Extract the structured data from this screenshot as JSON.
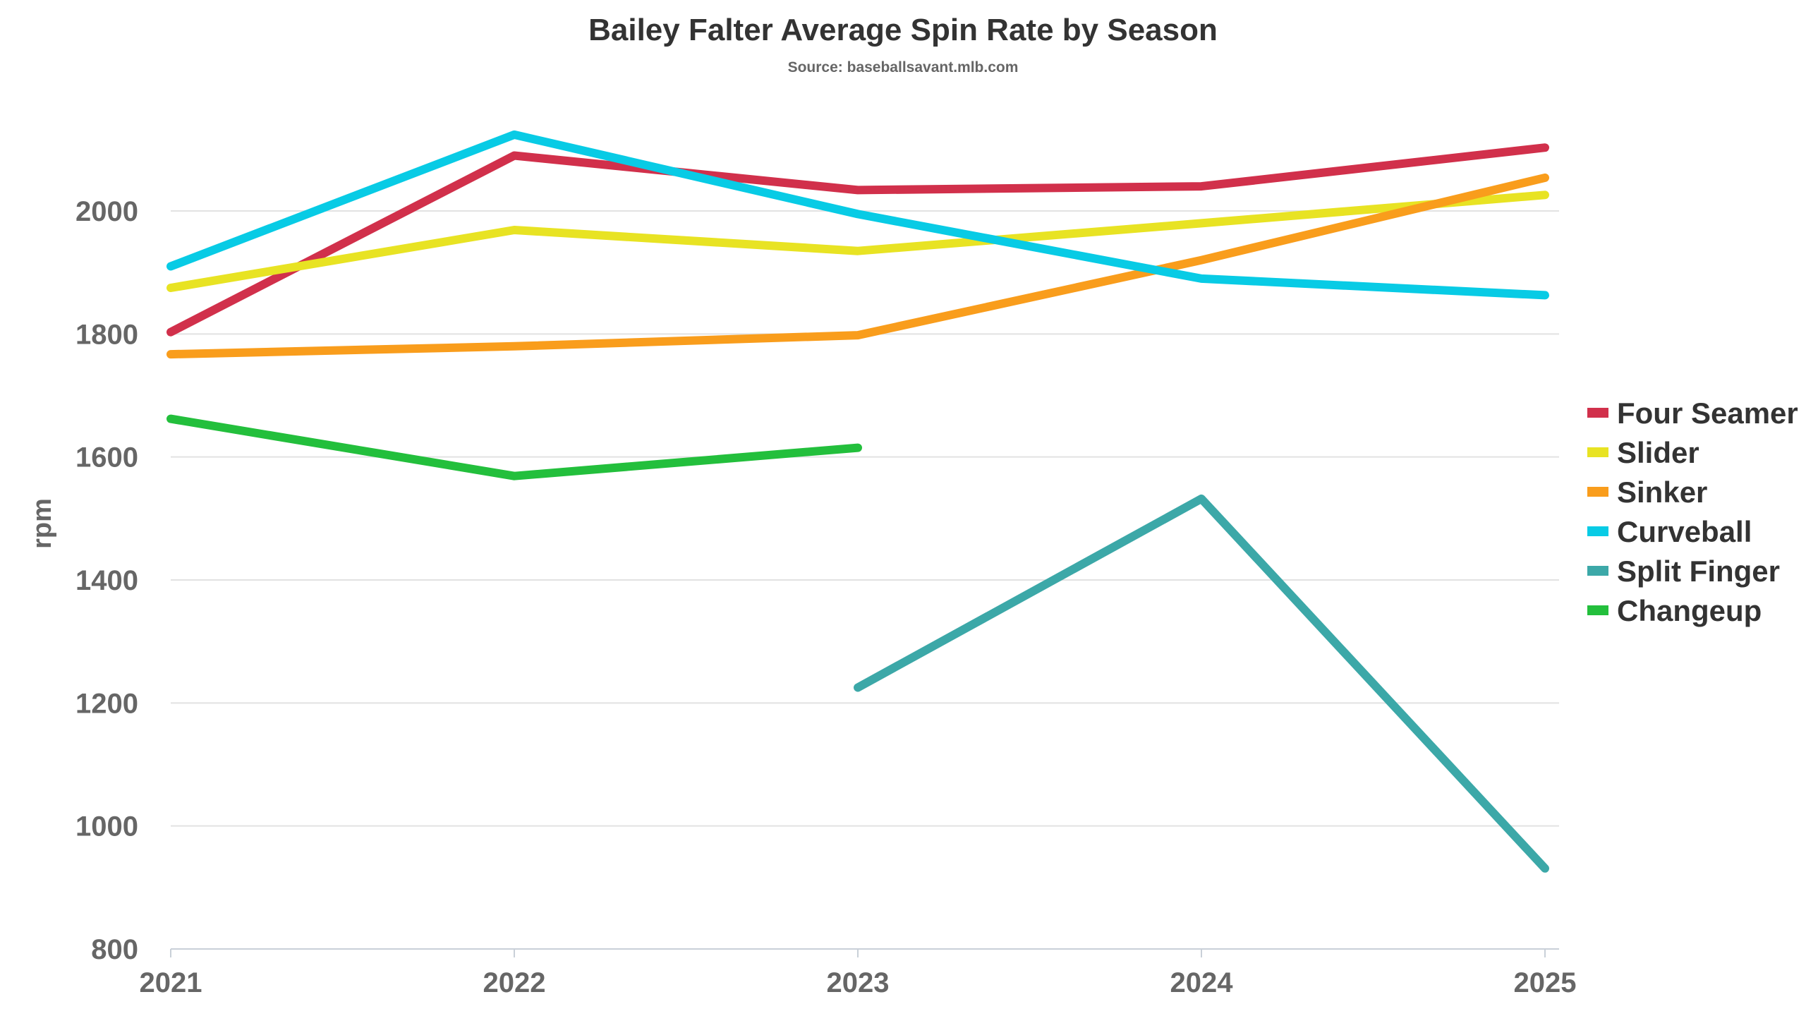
{
  "chart_data": {
    "type": "line",
    "title": "Bailey Falter Average Spin Rate by Season",
    "subtitle": "Source: baseballsavant.mlb.com",
    "xlabel": "",
    "ylabel": "rpm",
    "x": [
      "2021",
      "2022",
      "2023",
      "2024",
      "2025"
    ],
    "ylim": [
      800,
      2150
    ],
    "yticks": [
      800,
      1000,
      1200,
      1400,
      1600,
      1800,
      2000
    ],
    "grid": true,
    "legend_position": "right",
    "series": [
      {
        "name": "Four Seamer",
        "color": "#D1304B",
        "values": [
          1803,
          2090,
          2034,
          2040,
          2103
        ]
      },
      {
        "name": "Slider",
        "color": "#E8E323",
        "values": [
          1875,
          1969,
          1935,
          1980,
          2026
        ]
      },
      {
        "name": "Sinker",
        "color": "#F99D1C",
        "values": [
          1767,
          1780,
          1798,
          1920,
          2054
        ]
      },
      {
        "name": "Curveball",
        "color": "#08CBE5",
        "values": [
          1910,
          2124,
          1995,
          1890,
          1863
        ]
      },
      {
        "name": "Split Finger",
        "color": "#3CA8A8",
        "values": [
          null,
          null,
          1225,
          1532,
          931
        ]
      },
      {
        "name": "Changeup",
        "color": "#23BF3C",
        "values": [
          1662,
          1569,
          1615,
          null,
          null
        ]
      }
    ]
  }
}
